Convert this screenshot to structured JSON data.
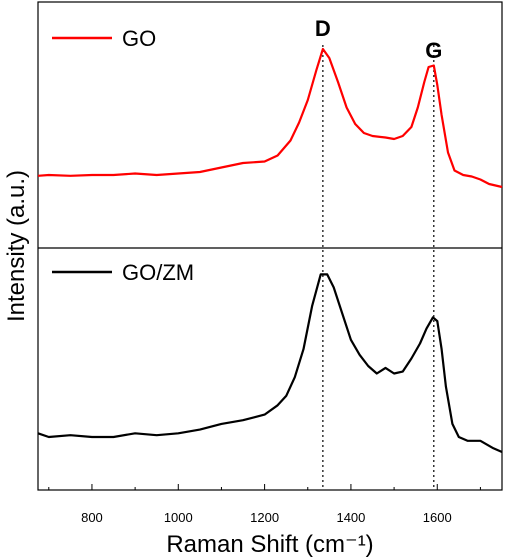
{
  "chart_data": {
    "type": "line",
    "title": "",
    "xlabel": "Raman Shift (cm⁻¹)",
    "ylabel": "Intensity (a.u.)",
    "xlim": [
      675,
      1750
    ],
    "ylim": [
      0,
      1
    ],
    "xticks": [
      800,
      1000,
      1200,
      1400,
      1600
    ],
    "grid": false,
    "legend": "top-left of each panel",
    "panels": [
      {
        "name": "top",
        "series": [
          {
            "name": "GO",
            "color": "#ff0000",
            "x": [
              675,
              700,
              750,
              800,
              850,
              900,
              950,
              1000,
              1050,
              1100,
              1150,
              1200,
              1230,
              1260,
              1280,
              1300,
              1320,
              1335,
              1350,
              1370,
              1390,
              1410,
              1430,
              1450,
              1480,
              1500,
              1520,
              1540,
              1555,
              1570,
              1580,
              1592,
              1600,
              1610,
              1625,
              1640,
              1660,
              1680,
              1700,
              1720,
              1750
            ],
            "values": [
              0.095,
              0.1,
              0.095,
              0.1,
              0.1,
              0.11,
              0.1,
              0.11,
              0.12,
              0.15,
              0.18,
              0.19,
              0.23,
              0.33,
              0.45,
              0.6,
              0.8,
              0.94,
              0.88,
              0.72,
              0.55,
              0.44,
              0.38,
              0.36,
              0.35,
              0.34,
              0.36,
              0.42,
              0.55,
              0.72,
              0.82,
              0.83,
              0.7,
              0.5,
              0.25,
              0.13,
              0.1,
              0.09,
              0.07,
              0.04,
              0.02
            ]
          }
        ],
        "annotations": [
          {
            "text": "D",
            "x": 1335
          },
          {
            "text": "G",
            "x": 1592
          }
        ]
      },
      {
        "name": "bottom",
        "series": [
          {
            "name": "GO/ZM",
            "color": "#000000",
            "x": [
              675,
              700,
              750,
              800,
              850,
              900,
              950,
              1000,
              1050,
              1100,
              1150,
              1200,
              1230,
              1250,
              1270,
              1290,
              1310,
              1330,
              1345,
              1360,
              1380,
              1400,
              1420,
              1440,
              1460,
              1480,
              1500,
              1520,
              1540,
              1560,
              1575,
              1590,
              1600,
              1610,
              1620,
              1635,
              1650,
              1670,
              1700,
              1730,
              1750
            ],
            "values": [
              0.1,
              0.08,
              0.09,
              0.08,
              0.08,
              0.1,
              0.09,
              0.1,
              0.12,
              0.15,
              0.17,
              0.2,
              0.25,
              0.3,
              0.4,
              0.55,
              0.78,
              0.95,
              0.95,
              0.88,
              0.74,
              0.6,
              0.52,
              0.46,
              0.42,
              0.45,
              0.42,
              0.43,
              0.5,
              0.58,
              0.66,
              0.72,
              0.7,
              0.55,
              0.35,
              0.15,
              0.08,
              0.06,
              0.06,
              0.02,
              0.0
            ]
          }
        ]
      }
    ]
  }
}
